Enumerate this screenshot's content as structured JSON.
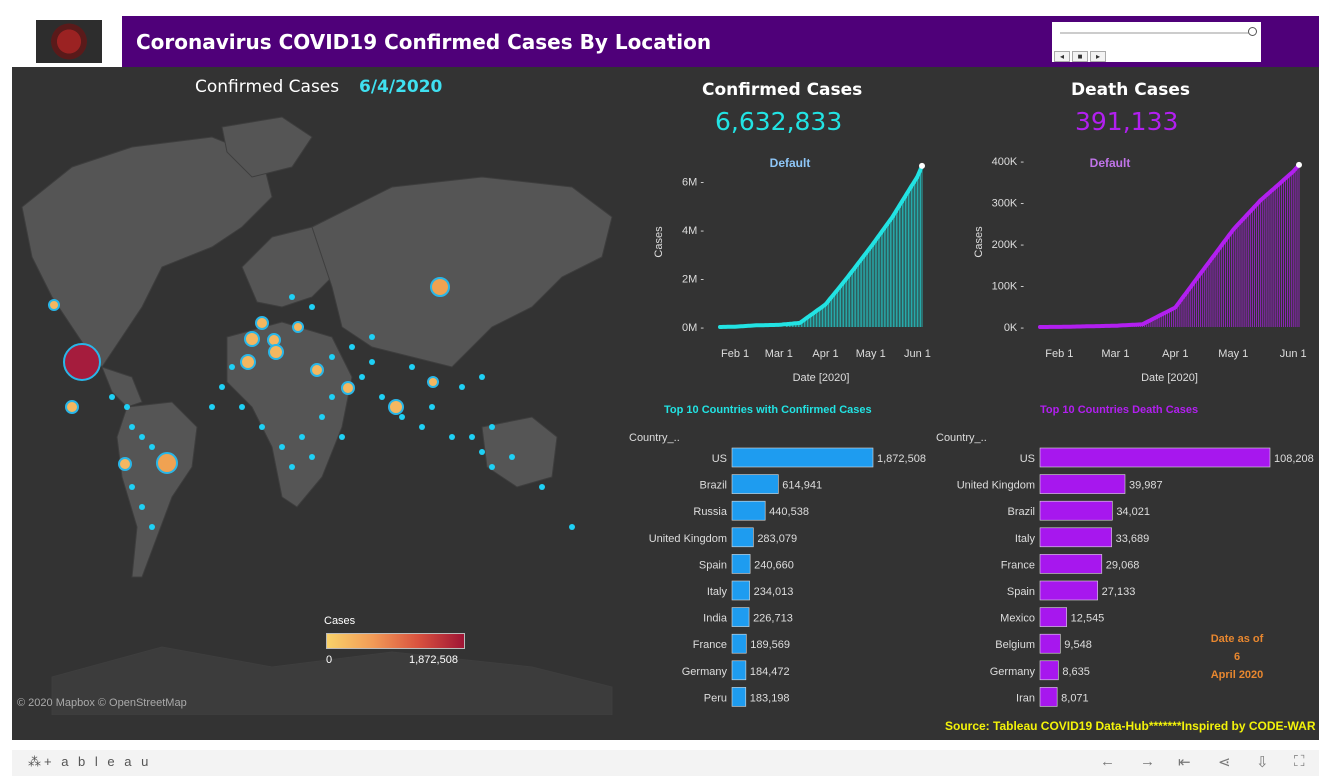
{
  "header": {
    "title": "Coronavirus COVID19 Confirmed Cases By Location"
  },
  "map": {
    "caption": "Confirmed Cases",
    "date": "6/4/2020",
    "copyright": "© 2020 Mapbox © OpenStreetMap",
    "legend": {
      "title": "Cases",
      "min": "0",
      "max": "1,872,508"
    }
  },
  "confirmed": {
    "title": "Confirmed Cases",
    "total": "6,632,833",
    "color": "#22e3e3",
    "label": "Default",
    "y_title": "Cases",
    "x_title": "Date [2020]",
    "section_title": "Top 10 Countries with Confirmed Cases",
    "column_header": "Country_..",
    "bar_color": "#1e9cf0"
  },
  "deaths": {
    "title": "Death Cases",
    "total": "391,133",
    "color": "#b21ff0",
    "label": "Default",
    "y_title": "Cases",
    "x_title": "Date [2020]",
    "section_title": "Top 10 Countries Death Cases",
    "column_header": "Country_..",
    "bar_color": "#a717ee"
  },
  "date_note": {
    "line1": "Date as of",
    "line2": "6",
    "line3": "April 2020"
  },
  "source": "Source: Tableau COVID19 Data-Hub*******Inspired by CODE-WAR",
  "toolbar": {
    "brand": "+ a b l e a u"
  },
  "chart_data": [
    {
      "type": "area",
      "title": "Confirmed Cases",
      "xlabel": "Date [2020]",
      "ylabel": "Cases",
      "x_ticks": [
        "Feb 1",
        "Mar 1",
        "Apr 1",
        "May 1",
        "Jun 1"
      ],
      "y_ticks": [
        "0M",
        "2M",
        "4M",
        "6M"
      ],
      "ylim": [
        0,
        7000000
      ],
      "series": [
        {
          "name": "Default",
          "x": [
            "2020-01-22",
            "2020-02-01",
            "2020-02-15",
            "2020-03-01",
            "2020-03-15",
            "2020-04-01",
            "2020-04-15",
            "2020-05-01",
            "2020-05-15",
            "2020-06-01",
            "2020-06-04"
          ],
          "values": [
            555,
            12000,
            69000,
            88000,
            170000,
            930000,
            2000000,
            3300000,
            4500000,
            6200000,
            6632833
          ]
        }
      ]
    },
    {
      "type": "area",
      "title": "Death Cases",
      "xlabel": "Date [2020]",
      "ylabel": "Cases",
      "x_ticks": [
        "Feb 1",
        "Mar 1",
        "Apr 1",
        "May 1",
        "Jun 1"
      ],
      "y_ticks": [
        "0K",
        "100K",
        "200K",
        "300K",
        "400K"
      ],
      "ylim": [
        0,
        410000
      ],
      "series": [
        {
          "name": "Default",
          "x": [
            "2020-01-22",
            "2020-02-01",
            "2020-02-15",
            "2020-03-01",
            "2020-03-15",
            "2020-04-01",
            "2020-04-15",
            "2020-05-01",
            "2020-05-15",
            "2020-06-01",
            "2020-06-04"
          ],
          "values": [
            17,
            260,
            1600,
            3000,
            6500,
            47000,
            135000,
            235000,
            305000,
            375000,
            391133
          ]
        }
      ]
    },
    {
      "type": "bar",
      "title": "Top 10 Countries with Confirmed Cases",
      "categories": [
        "US",
        "Brazil",
        "Russia",
        "United Kingdom",
        "Spain",
        "Italy",
        "India",
        "France",
        "Germany",
        "Peru"
      ],
      "values": [
        1872508,
        614941,
        440538,
        283079,
        240660,
        234013,
        226713,
        189569,
        184472,
        183198
      ],
      "labels": [
        "1,872,508",
        "614,941",
        "440,538",
        "283,079",
        "240,660",
        "234,013",
        "226,713",
        "189,569",
        "184,472",
        "183,198"
      ]
    },
    {
      "type": "bar",
      "title": "Top 10 Countries Death Cases",
      "categories": [
        "US",
        "United Kingdom",
        "Brazil",
        "Italy",
        "France",
        "Spain",
        "Mexico",
        "Belgium",
        "Germany",
        "Iran"
      ],
      "values": [
        108208,
        39987,
        34021,
        33689,
        29068,
        27133,
        12545,
        9548,
        8635,
        8071
      ],
      "labels": [
        "108,208",
        "39,987",
        "34,021",
        "33,689",
        "29,068",
        "27,133",
        "12,545",
        "9,548",
        "8,635",
        "8,071"
      ]
    }
  ]
}
